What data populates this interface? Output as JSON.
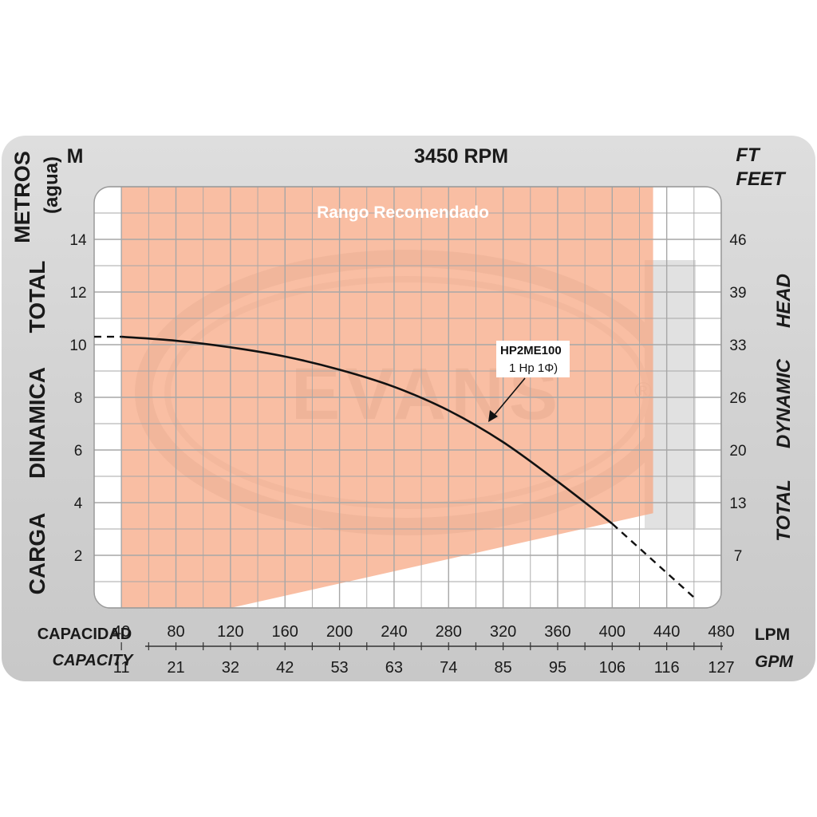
{
  "chart_data": {
    "type": "line",
    "title": "3450 RPM",
    "left_unit": "M",
    "right_unit_1": "FT",
    "right_unit_2": "FEET",
    "ylabel_left_words": [
      "CARGA",
      "DINAMICA",
      "TOTAL",
      "METROS"
    ],
    "ylabel_left_sub": "(agua)",
    "ylabel_right_words": [
      "TOTAL",
      "DYNAMIC",
      "HEAD"
    ],
    "xlabel_primary": "CAPACIDAD",
    "xlabel_secondary": "CAPACITY",
    "x_unit_primary": "LPM",
    "x_unit_secondary": "GPM",
    "x_lpm_ticks": [
      "40",
      "80",
      "120",
      "160",
      "200",
      "240",
      "280",
      "320",
      "360",
      "400",
      "440",
      "480"
    ],
    "x_gpm_ticks": [
      "11",
      "21",
      "32",
      "42",
      "53",
      "63",
      "74",
      "85",
      "95",
      "106",
      "116",
      "127"
    ],
    "y_m_ticks": [
      "2",
      "4",
      "6",
      "8",
      "10",
      "12",
      "14"
    ],
    "y_ft_ticks": [
      "7",
      "13",
      "20",
      "26",
      "33",
      "39",
      "46"
    ],
    "xlim": [
      20,
      480
    ],
    "ylim": [
      0,
      16
    ],
    "grid": true,
    "recommended_range_label": "Rango Recomendado",
    "recommended_range": {
      "x_start": 40,
      "x_end": 430,
      "y_top": 16,
      "bottom_left_y": 0,
      "bottom_right_y": 3.6
    },
    "watermark": "EVANS",
    "series": [
      {
        "name": "HP2ME100",
        "subname": "1 Hp 1Φ)",
        "solid": {
          "x": [
            40,
            80,
            120,
            160,
            200,
            240,
            280,
            320,
            360,
            400
          ],
          "y": [
            10.3,
            10.15,
            9.9,
            9.55,
            9.05,
            8.4,
            7.5,
            6.3,
            4.8,
            3.2
          ]
        },
        "dashed_start": {
          "x": [
            20,
            40
          ],
          "y": [
            10.3,
            10.3
          ]
        },
        "dashed_end": {
          "x": [
            400,
            460
          ],
          "y": [
            3.2,
            0.4
          ]
        }
      }
    ]
  }
}
